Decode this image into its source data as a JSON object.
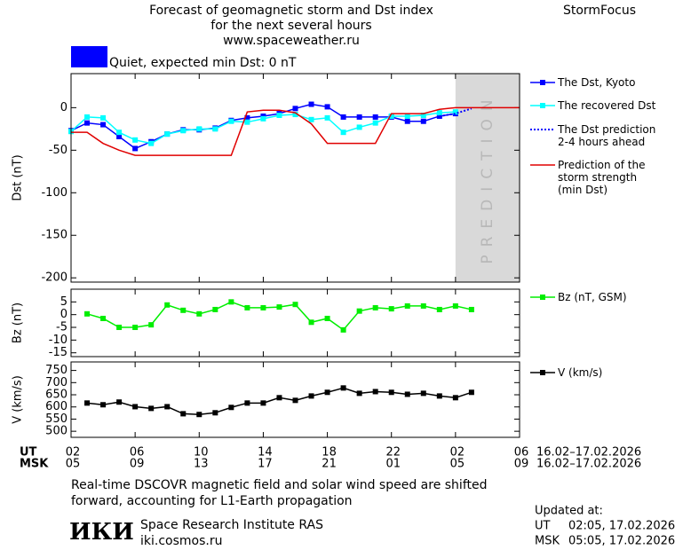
{
  "header": {
    "title": "Forecast of geomagnetic storm and Dst index",
    "subtitle": "for the next several hours",
    "url": "www.spaceweather.ru",
    "app": "StormFocus",
    "status": "Quiet, expected min Dst: 0 nT",
    "status_color": "#0000ff"
  },
  "chart_data": [
    {
      "type": "line",
      "y_label": "Dst (nT)",
      "xlim": [
        0,
        28
      ],
      "ylim": [
        -205,
        40
      ],
      "yticks": [
        0,
        -50,
        -100,
        -150,
        -200
      ],
      "shade": {
        "x": [
          24,
          28
        ],
        "label": "PREDICTION",
        "color": "#d9d9d9"
      },
      "series": [
        {
          "name": "The Dst, Kyoto",
          "color": "#0000ff",
          "marker": "square",
          "x": [
            0,
            1,
            2,
            3,
            4,
            5,
            6,
            7,
            8,
            9,
            10,
            11,
            12,
            13,
            14,
            15,
            16,
            17,
            18,
            19,
            20,
            21,
            22,
            23,
            24
          ],
          "values": [
            -27,
            -18,
            -20,
            -34,
            -48,
            -40,
            -31,
            -26,
            -26,
            -24,
            -15,
            -12,
            -10,
            -7,
            -1,
            4,
            1,
            -11,
            -11,
            -11,
            -11,
            -16,
            -16,
            -10,
            -7
          ]
        },
        {
          "name": "The recovered Dst",
          "color": "#00ffff",
          "marker": "square",
          "x": [
            0,
            1,
            2,
            3,
            4,
            5,
            6,
            7,
            8,
            9,
            10,
            11,
            12,
            13,
            14,
            15,
            16,
            17,
            18,
            19,
            20,
            21,
            22,
            23,
            24
          ],
          "values": [
            -28,
            -11,
            -12,
            -29,
            -38,
            -42,
            -31,
            -27,
            -25,
            -25,
            -16,
            -17,
            -13,
            -9,
            -8,
            -14,
            -12,
            -29,
            -23,
            -18,
            -10,
            -10,
            -9,
            -6,
            -5
          ]
        },
        {
          "name": "The Dst prediction\n2-4 hours ahead",
          "color": "#0000ff",
          "dash": true,
          "x": [
            23,
            24,
            25
          ],
          "values": [
            -10,
            -7,
            -1
          ]
        },
        {
          "name": "Prediction of the\nstorm strength\n(min Dst)",
          "color": "#e00000",
          "x": [
            0,
            1,
            2,
            3,
            4,
            5,
            6,
            7,
            8,
            9,
            10,
            11,
            12,
            13,
            14,
            15,
            16,
            17,
            18,
            19,
            20,
            21,
            22,
            23,
            24,
            25,
            26,
            27,
            28
          ],
          "values": [
            -29,
            -29,
            -42,
            -50,
            -56,
            -56,
            -56,
            -56,
            -56,
            -56,
            -56,
            -5,
            -3,
            -3,
            -6,
            -19,
            -42,
            -42,
            -42,
            -42,
            -7,
            -7,
            -7,
            -2,
            0,
            0,
            0,
            0,
            0
          ]
        }
      ]
    },
    {
      "type": "line",
      "y_label": "Bz (nT)",
      "xlim": [
        0,
        28
      ],
      "ylim": [
        -16.5,
        10
      ],
      "yticks": [
        5,
        0,
        -5,
        -10,
        -15
      ],
      "series": [
        {
          "name": "Bz (nT, GSM)",
          "color": "#00ee00",
          "marker": "square",
          "x": [
            1,
            2,
            3,
            4,
            5,
            6,
            7,
            8,
            9,
            10,
            11,
            12,
            13,
            14,
            15,
            16,
            17,
            18,
            19,
            20,
            21,
            22,
            23,
            24,
            25
          ],
          "values": [
            0.3,
            -1.5,
            -5,
            -5,
            -4,
            3.8,
            1.7,
            0.3,
            2,
            5,
            2.7,
            2.7,
            3,
            4,
            -3,
            -1.5,
            -6,
            1.4,
            2.7,
            2.3,
            3.4,
            3.4,
            2,
            3.4,
            2
          ]
        }
      ]
    },
    {
      "type": "line",
      "y_label": "V (km/s)",
      "xlim": [
        0,
        28
      ],
      "ylim": [
        475,
        785
      ],
      "yticks": [
        750,
        700,
        650,
        600,
        550,
        500
      ],
      "x_label": "UT",
      "x_label_msk": "MSK",
      "date_range": "16.02–17.02.2026",
      "xticks": [
        {
          "value": 0,
          "label": "02"
        },
        {
          "value": 4,
          "label": "06"
        },
        {
          "value": 8,
          "label": "10"
        },
        {
          "value": 12,
          "label": "14"
        },
        {
          "value": 16,
          "label": "18"
        },
        {
          "value": 20,
          "label": "22"
        },
        {
          "value": 24,
          "label": "02"
        },
        {
          "value": 28,
          "label": "06"
        }
      ],
      "xticks_msk": [
        "05",
        "09",
        "13",
        "17",
        "21",
        "01",
        "05",
        "09"
      ],
      "series": [
        {
          "name": "V (km/s)",
          "color": "#000000",
          "marker": "square",
          "x": [
            1,
            2,
            3,
            4,
            5,
            6,
            7,
            8,
            9,
            10,
            11,
            12,
            13,
            14,
            15,
            16,
            17,
            18,
            19,
            20,
            21,
            22,
            23,
            24,
            25
          ],
          "values": [
            616,
            609,
            620,
            601,
            594,
            601,
            572,
            569,
            576,
            598,
            616,
            616,
            638,
            627,
            645,
            660,
            678,
            656,
            663,
            660,
            652,
            656,
            645,
            638,
            660
          ]
        }
      ]
    }
  ],
  "footer": {
    "note": [
      "Real-time DSCOVR magnetic field and solar wind speed are shifted",
      "forward, accounting for L1-Earth propagation"
    ],
    "logo": "ИКИ",
    "institute": "Space Research Institute RAS",
    "site": "iki.cosmos.ru",
    "updated_label": "Updated at:",
    "updated": [
      {
        "zone": "UT",
        "time": "02:05, 17.02.2026"
      },
      {
        "zone": "MSK",
        "time": "05:05, 17.02.2026"
      }
    ]
  }
}
